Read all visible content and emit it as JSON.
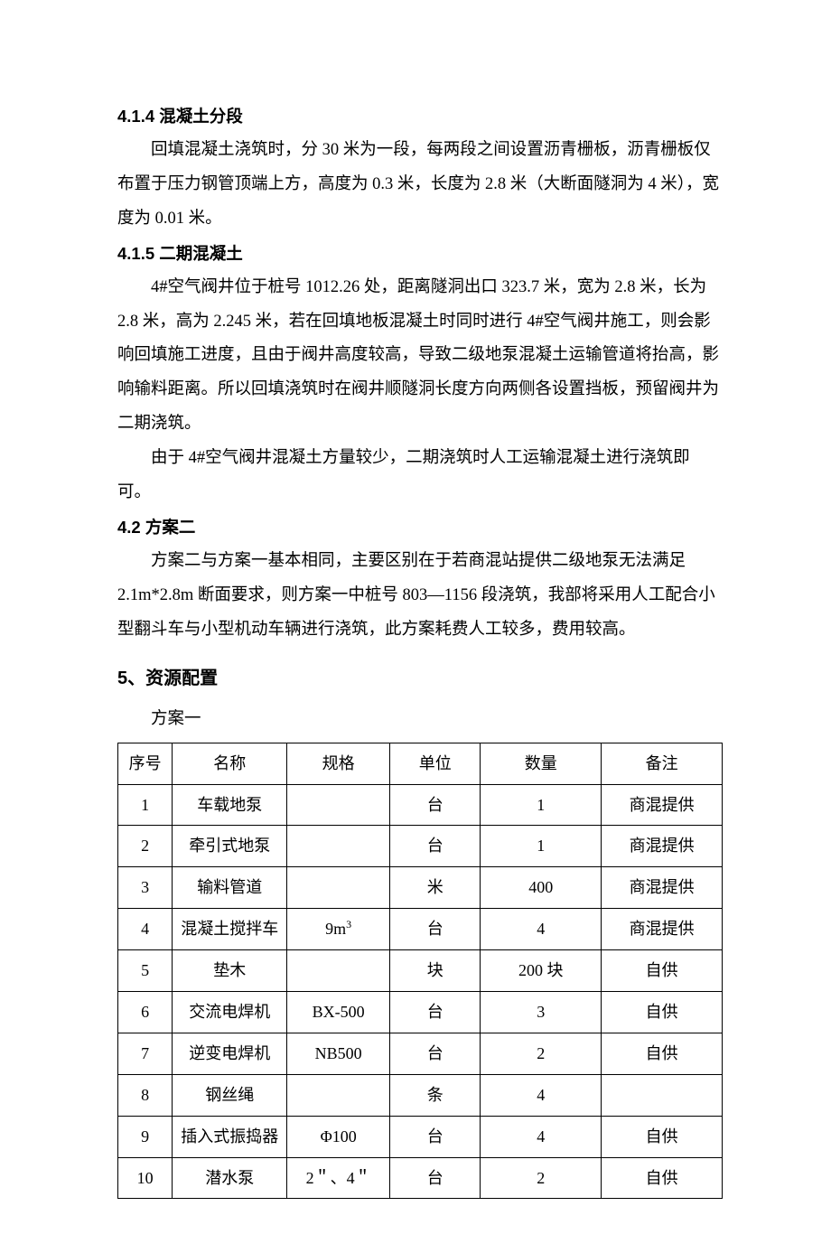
{
  "sec414": {
    "heading": "4.1.4  混凝土分段",
    "p1": "回填混凝土浇筑时，分 30 米为一段，每两段之间设置沥青栅板，沥青栅板仅布置于压力钢管顶端上方，高度为 0.3 米，长度为 2.8 米（大断面隧洞为 4 米），宽度为 0.01 米。"
  },
  "sec415": {
    "heading": "4.1.5  二期混凝土",
    "p1": "4#空气阀井位于桩号 1012.26 处，距离隧洞出口 323.7 米，宽为 2.8 米，长为 2.8 米，高为 2.245 米，若在回填地板混凝土时同时进行 4#空气阀井施工，则会影响回填施工进度，且由于阀井高度较高，导致二级地泵混凝土运输管道将抬高，影响输料距离。所以回填浇筑时在阀井顺隧洞长度方向两侧各设置挡板，预留阀井为二期浇筑。",
    "p2": "由于 4#空气阀井混凝土方量较少，二期浇筑时人工运输混凝土进行浇筑即可。"
  },
  "sec42": {
    "heading": "4.2  方案二",
    "p1": "方案二与方案一基本相同，主要区别在于若商混站提供二级地泵无法满足 2.1m*2.8m 断面要求，则方案一中桩号 803—1156 段浇筑，我部将采用人工配合小型翻斗车与小型机动车辆进行浇筑，此方案耗费人工较多，费用较高。"
  },
  "sec5": {
    "heading": "5、资源配置",
    "caption": "方案一",
    "headers": {
      "idx": "序号",
      "name": "名称",
      "spec": "规格",
      "unit": "单位",
      "qty": "数量",
      "note": "备注"
    },
    "rows": [
      {
        "idx": "1",
        "name": "车载地泵",
        "spec": "",
        "unit": "台",
        "qty": "1",
        "note": "商混提供"
      },
      {
        "idx": "2",
        "name": "牵引式地泵",
        "spec": "",
        "unit": "台",
        "qty": "1",
        "note": "商混提供"
      },
      {
        "idx": "3",
        "name": "输料管道",
        "spec": "",
        "unit": "米",
        "qty": "400",
        "note": "商混提供"
      },
      {
        "idx": "4",
        "name": "混凝土搅拌车",
        "spec": "9m³",
        "unit": "台",
        "qty": "4",
        "note": "商混提供"
      },
      {
        "idx": "5",
        "name": "垫木",
        "spec": "",
        "unit": "块",
        "qty": "200 块",
        "note": "自供"
      },
      {
        "idx": "6",
        "name": "交流电焊机",
        "spec": "BX-500",
        "unit": "台",
        "qty": "3",
        "note": "自供"
      },
      {
        "idx": "7",
        "name": "逆变电焊机",
        "spec": "NB500",
        "unit": "台",
        "qty": "2",
        "note": "自供"
      },
      {
        "idx": "8",
        "name": "钢丝绳",
        "spec": "",
        "unit": "条",
        "qty": "4",
        "note": ""
      },
      {
        "idx": "9",
        "name": "插入式振捣器",
        "spec": "Φ100",
        "unit": "台",
        "qty": "4",
        "note": "自供"
      },
      {
        "idx": "10",
        "name": "潜水泵",
        "spec": "2＂、4＂",
        "unit": "台",
        "qty": "2",
        "note": "自供"
      }
    ]
  }
}
